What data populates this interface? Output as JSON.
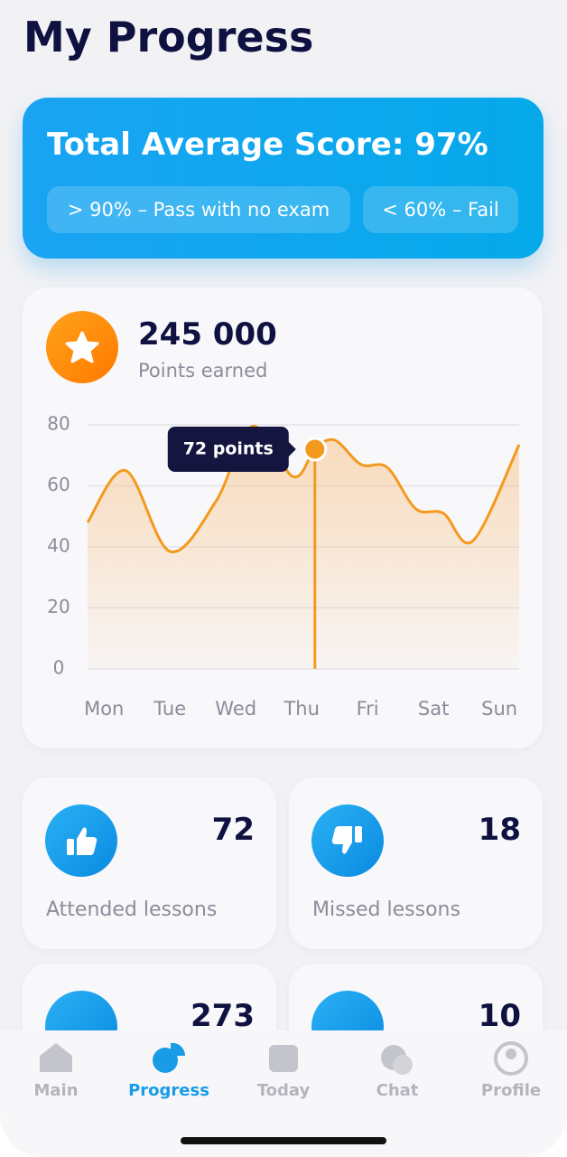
{
  "header": {
    "title": "My Progress"
  },
  "score_card": {
    "title": "Total Average Score: 97%",
    "chips": [
      "> 90% – Pass with no exam",
      "< 60% – Fail"
    ]
  },
  "points_card": {
    "value": "245 000",
    "label": "Points earned",
    "chart": {
      "type": "line",
      "categories": [
        "Mon",
        "Tue",
        "Wed",
        "Thu",
        "Fri",
        "Sat",
        "Sun"
      ],
      "x": [
        -0.25,
        0.33,
        1,
        1.7,
        2.25,
        2.87,
        3.2,
        3.5,
        3.9,
        4.3,
        4.73,
        5.15,
        5.6,
        6.3
      ],
      "values": [
        48,
        65,
        38.5,
        55,
        79.5,
        63,
        72,
        75,
        67,
        66,
        52.5,
        51,
        42,
        73.5
      ],
      "color": "#f39a1e",
      "xlim": [
        -0.25,
        6.3
      ],
      "ylim": [
        0,
        80
      ],
      "yticks": [
        0,
        20,
        40,
        60,
        80
      ],
      "grid": true,
      "tooltip": {
        "x": 3.2,
        "value": 72,
        "label": "72 points"
      }
    }
  },
  "stats": [
    {
      "value": 72,
      "label": "Attended lessons"
    },
    {
      "value": 18,
      "label": "Missed lessons"
    },
    {
      "value": 273
    },
    {
      "value": 10
    }
  ],
  "nav": {
    "items": [
      "Main",
      "Progress",
      "Today",
      "Chat",
      "Profile"
    ],
    "active": 1
  }
}
